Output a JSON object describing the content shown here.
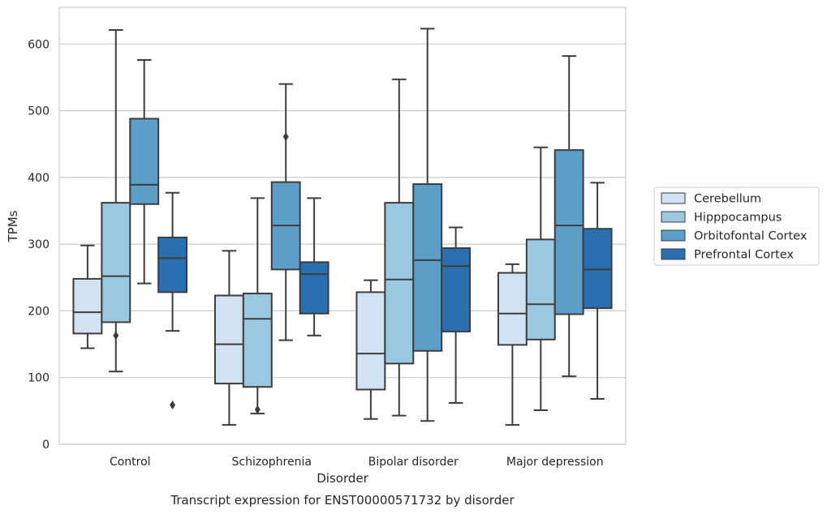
{
  "chart_data": {
    "type": "box",
    "xlabel": "Disorder",
    "ylabel": "TPMs",
    "caption": "Transcript expression for ENST00000571732 by disorder",
    "categories": [
      "Control",
      "Schizophrenia",
      "Bipolar disorder",
      "Major depression"
    ],
    "ylim": [
      0,
      655
    ],
    "yticks": [
      0,
      100,
      200,
      300,
      400,
      500,
      600
    ],
    "grid": "horizontal",
    "legend_position": "right",
    "series": [
      {
        "name": "Cerebellum",
        "color": "#d1e2f2",
        "boxes": [
          {
            "whisker_low": 144,
            "q1": 166,
            "median": 198,
            "q3": 248,
            "whisker_high": 298,
            "outliers": []
          },
          {
            "whisker_low": 29,
            "q1": 91,
            "median": 150,
            "q3": 223,
            "whisker_high": 290,
            "outliers": []
          },
          {
            "whisker_low": 38,
            "q1": 82,
            "median": 136,
            "q3": 228,
            "whisker_high": 246,
            "outliers": []
          },
          {
            "whisker_low": 29,
            "q1": 149,
            "median": 196,
            "q3": 257,
            "whisker_high": 270,
            "outliers": []
          }
        ]
      },
      {
        "name": "Hipppocampus",
        "color": "#9ac8e0",
        "boxes": [
          {
            "whisker_low": 109,
            "q1": 183,
            "median": 252,
            "q3": 362,
            "whisker_high": 621,
            "outliers": [
              163
            ]
          },
          {
            "whisker_low": 46,
            "q1": 86,
            "median": 188,
            "q3": 226,
            "whisker_high": 369,
            "outliers": [
              52
            ]
          },
          {
            "whisker_low": 43,
            "q1": 121,
            "median": 247,
            "q3": 362,
            "whisker_high": 547,
            "outliers": []
          },
          {
            "whisker_low": 51,
            "q1": 157,
            "median": 210,
            "q3": 307,
            "whisker_high": 445,
            "outliers": []
          }
        ]
      },
      {
        "name": "Orbitofontal Cortex",
        "color": "#5b9fc9",
        "boxes": [
          {
            "whisker_low": 241,
            "q1": 360,
            "median": 389,
            "q3": 488,
            "whisker_high": 576,
            "outliers": []
          },
          {
            "whisker_low": 156,
            "q1": 262,
            "median": 328,
            "q3": 393,
            "whisker_high": 540,
            "outliers": [
              461
            ]
          },
          {
            "whisker_low": 35,
            "q1": 140,
            "median": 276,
            "q3": 390,
            "whisker_high": 623,
            "outliers": []
          },
          {
            "whisker_low": 102,
            "q1": 195,
            "median": 328,
            "q3": 441,
            "whisker_high": 582,
            "outliers": []
          }
        ]
      },
      {
        "name": "Prefrontal Cortex",
        "color": "#2a6fb0",
        "boxes": [
          {
            "whisker_low": 170,
            "q1": 228,
            "median": 279,
            "q3": 310,
            "whisker_high": 377,
            "outliers": [
              59
            ]
          },
          {
            "whisker_low": 163,
            "q1": 196,
            "median": 255,
            "q3": 273,
            "whisker_high": 369,
            "outliers": []
          },
          {
            "whisker_low": 62,
            "q1": 169,
            "median": 267,
            "q3": 294,
            "whisker_high": 325,
            "outliers": []
          },
          {
            "whisker_low": 68,
            "q1": 204,
            "median": 262,
            "q3": 323,
            "whisker_high": 392,
            "outliers": []
          }
        ]
      }
    ]
  }
}
